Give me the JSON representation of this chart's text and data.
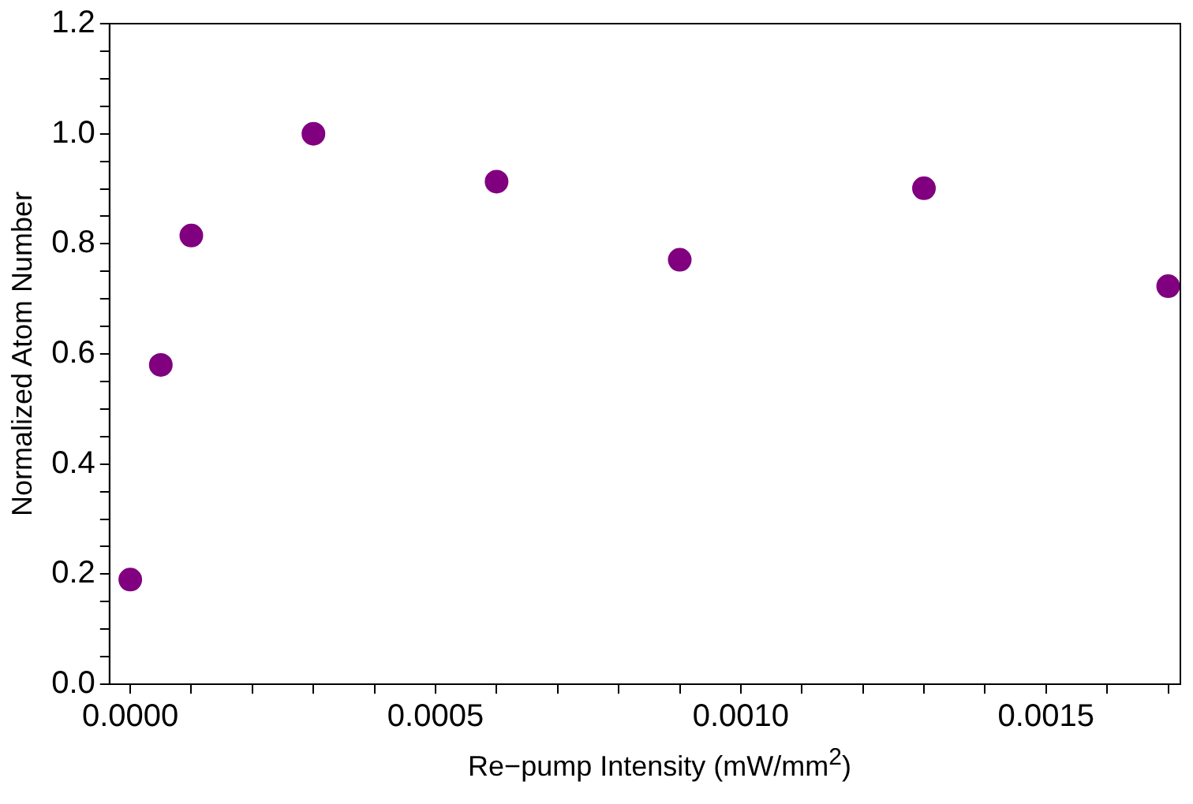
{
  "chart_data": {
    "type": "scatter",
    "xlabel": "Re−pump Intensity (mW/mm$^{2}$)",
    "ylabel": "Normalized Atom Number",
    "x": [
      0,
      5e-05,
      0.0001,
      0.0003,
      0.0006,
      0.0009,
      0.0013,
      0.0017
    ],
    "series": [
      {
        "color": "#800080",
        "values": [
          0.19,
          0.58,
          0.815,
          1.0,
          0.913,
          0.771,
          0.901,
          0.723
        ]
      }
    ],
    "xlim": [
      -3.4e-05,
      0.00172
    ],
    "xticks": [
      {
        "value": 0,
        "label": "0.0000"
      },
      {
        "value": 0.0001,
        "label": null
      },
      {
        "value": 0.0002,
        "label": null
      },
      {
        "value": 0.0003,
        "label": null
      },
      {
        "value": 0.0004,
        "label": null
      },
      {
        "value": 0.0005,
        "label": "0.0005"
      },
      {
        "value": 0.0006,
        "label": null
      },
      {
        "value": 0.0007,
        "label": null
      },
      {
        "value": 0.0008,
        "label": null
      },
      {
        "value": 0.0009,
        "label": null
      },
      {
        "value": 0.001,
        "label": "0.0010"
      },
      {
        "value": 0.0011,
        "label": null
      },
      {
        "value": 0.0012,
        "label": null
      },
      {
        "value": 0.0013,
        "label": null
      },
      {
        "value": 0.0014,
        "label": null
      },
      {
        "value": 0.0015,
        "label": "0.0015"
      },
      {
        "value": 0.0016,
        "label": null
      },
      {
        "value": 0.0017,
        "label": null
      }
    ],
    "ylim": [
      0,
      1.2
    ],
    "yticks": [
      {
        "value": 0,
        "label": "0.0"
      },
      {
        "value": 0.05,
        "label": null
      },
      {
        "value": 0.1,
        "label": null
      },
      {
        "value": 0.15,
        "label": null
      },
      {
        "value": 0.2,
        "label": "0.2"
      },
      {
        "value": 0.25,
        "label": null
      },
      {
        "value": 0.3,
        "label": null
      },
      {
        "value": 0.35,
        "label": null
      },
      {
        "value": 0.4,
        "label": "0.4"
      },
      {
        "value": 0.45,
        "label": null
      },
      {
        "value": 0.5,
        "label": null
      },
      {
        "value": 0.55,
        "label": null
      },
      {
        "value": 0.6,
        "label": "0.6"
      },
      {
        "value": 0.65,
        "label": null
      },
      {
        "value": 0.7,
        "label": null
      },
      {
        "value": 0.75,
        "label": null
      },
      {
        "value": 0.8,
        "label": "0.8"
      },
      {
        "value": 0.85,
        "label": null
      },
      {
        "value": 0.9,
        "label": null
      },
      {
        "value": 0.95,
        "label": null
      },
      {
        "value": 1.0,
        "label": "1.0"
      },
      {
        "value": 1.05,
        "label": null
      },
      {
        "value": 1.1,
        "label": null
      },
      {
        "value": 1.15,
        "label": null
      },
      {
        "value": 1.2,
        "label": "1.2"
      }
    ],
    "grid": false,
    "legend": false,
    "marker": "circle"
  }
}
